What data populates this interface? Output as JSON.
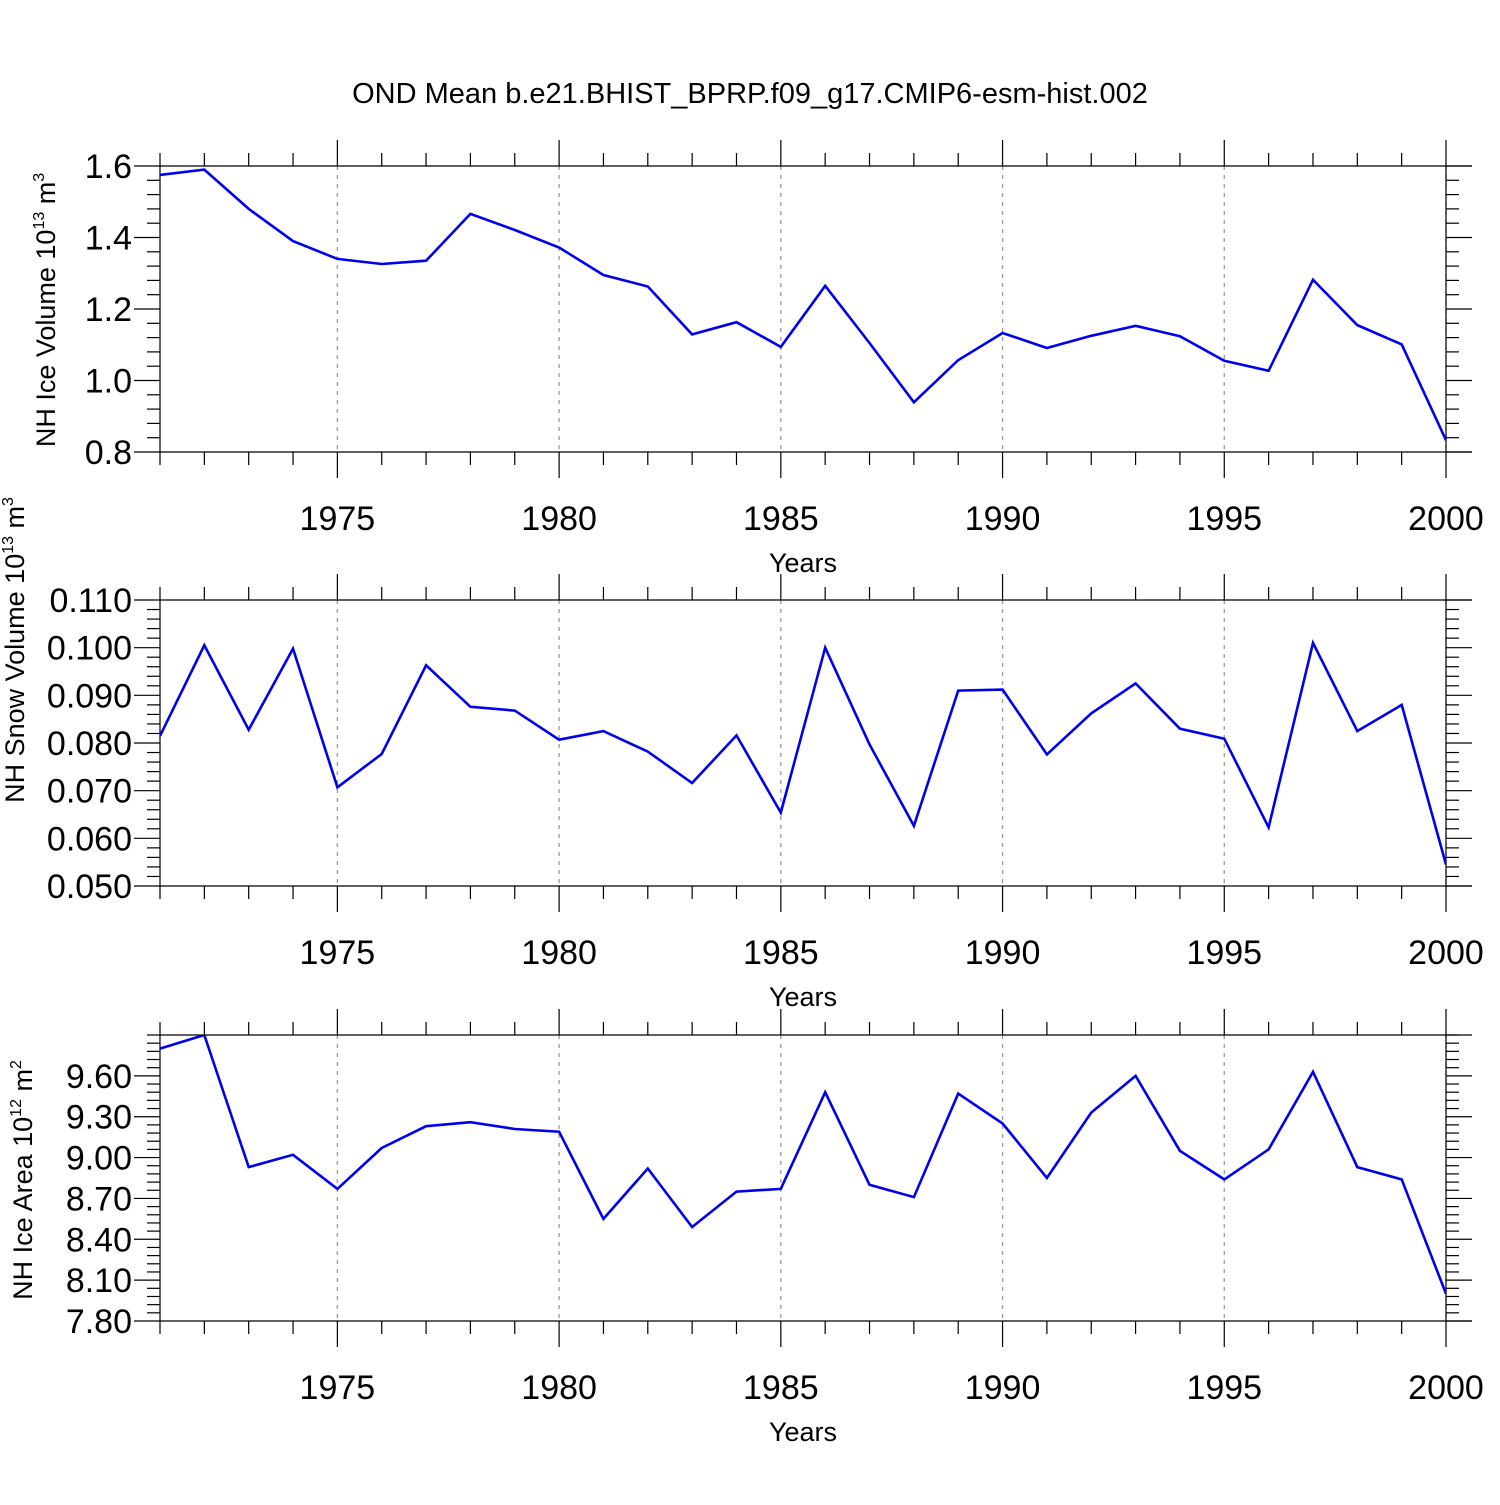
{
  "title": "OND Mean b.e21.BHIST_BPRP.f09_g17.CMIP6-esm-hist.002",
  "colors": {
    "series": "#0000ee",
    "grid": "#999999",
    "frame": "#000000"
  },
  "chart_data": [
    {
      "type": "line",
      "xlabel": "Years",
      "ylabel_main": "NH Ice Volume 10",
      "ylabel_exp": "13",
      "ylabel_unit": "m",
      "ylabel_unit_exp": "3",
      "xlim": [
        1971,
        2000
      ],
      "ylim": [
        0.8,
        1.6
      ],
      "xticks": [
        1975,
        1980,
        1985,
        1990,
        1995,
        2000
      ],
      "xtick_labels": [
        "1975",
        "1980",
        "1985",
        "1990",
        "1995",
        "2000"
      ],
      "yticks": [
        0.8,
        1.0,
        1.2,
        1.4,
        1.6
      ],
      "ytick_labels": [
        "0.8",
        "1.0",
        "1.2",
        "1.4",
        "1.6"
      ],
      "yminor_step": 0.04,
      "grid": "vertical-dashed-at-major-x-ticks",
      "x": [
        1971,
        1972,
        1973,
        1974,
        1975,
        1976,
        1977,
        1978,
        1979,
        1980,
        1981,
        1982,
        1983,
        1984,
        1985,
        1986,
        1987,
        1988,
        1989,
        1990,
        1991,
        1992,
        1993,
        1994,
        1995,
        1996,
        1997,
        1998,
        1999,
        2000
      ],
      "values": [
        1.575,
        1.59,
        1.48,
        1.39,
        1.34,
        1.326,
        1.335,
        1.466,
        1.421,
        1.372,
        1.295,
        1.263,
        1.129,
        1.163,
        1.094,
        1.265,
        1.105,
        0.939,
        1.057,
        1.133,
        1.091,
        1.125,
        1.153,
        1.124,
        1.055,
        1.027,
        1.282,
        1.155,
        1.101,
        0.833
      ]
    },
    {
      "type": "line",
      "xlabel": "Years",
      "ylabel_visible": "NH Snow Volume 10",
      "ylabel_exp": "13",
      "ylabel_unit": "m",
      "ylabel_unit_exp": "3",
      "xlim": [
        1971,
        2000
      ],
      "ylim": [
        0.05,
        0.11
      ],
      "xticks": [
        1975,
        1980,
        1985,
        1990,
        1995,
        2000
      ],
      "xtick_labels": [
        "1975",
        "1980",
        "1985",
        "1990",
        "1995",
        "2000"
      ],
      "yticks": [
        0.05,
        0.06,
        0.07,
        0.08,
        0.09,
        0.1,
        0.11
      ],
      "ytick_labels": [
        "0.050",
        "0.060",
        "0.070",
        "0.080",
        "0.090",
        "0.100",
        "0.110"
      ],
      "yminor_step": 0.002,
      "grid": "vertical-dashed-at-major-x-ticks",
      "x": [
        1971,
        1972,
        1973,
        1974,
        1975,
        1976,
        1977,
        1978,
        1979,
        1980,
        1981,
        1982,
        1983,
        1984,
        1985,
        1986,
        1987,
        1988,
        1989,
        1990,
        1991,
        1992,
        1993,
        1994,
        1995,
        1996,
        1997,
        1998,
        1999,
        2000
      ],
      "values": [
        0.0815,
        0.1005,
        0.0828,
        0.0998,
        0.0707,
        0.0777,
        0.0963,
        0.0876,
        0.0868,
        0.0807,
        0.0825,
        0.0782,
        0.0716,
        0.0816,
        0.0654,
        0.1,
        0.0797,
        0.0626,
        0.091,
        0.0912,
        0.0776,
        0.0862,
        0.0925,
        0.083,
        0.0809,
        0.0623,
        0.101,
        0.0825,
        0.088,
        0.0545
      ]
    },
    {
      "type": "line",
      "xlabel": "Years",
      "ylabel_main": "NH Ice Area 10",
      "ylabel_exp": "12",
      "ylabel_unit": "m",
      "ylabel_unit_exp": "2",
      "xlim": [
        1971,
        2000
      ],
      "ylim": [
        7.8,
        9.9
      ],
      "xticks": [
        1975,
        1980,
        1985,
        1990,
        1995,
        2000
      ],
      "xtick_labels": [
        "1975",
        "1980",
        "1985",
        "1990",
        "1995",
        "2000"
      ],
      "yticks": [
        7.8,
        8.1,
        8.4,
        8.7,
        9.0,
        9.3,
        9.6
      ],
      "ytick_labels": [
        "7.80",
        "8.10",
        "8.40",
        "8.70",
        "9.00",
        "9.30",
        "9.60"
      ],
      "yminor_step": 0.06,
      "grid": "vertical-dashed-at-major-x-ticks",
      "x": [
        1971,
        1972,
        1973,
        1974,
        1975,
        1976,
        1977,
        1978,
        1979,
        1980,
        1981,
        1982,
        1983,
        1984,
        1985,
        1986,
        1987,
        1988,
        1989,
        1990,
        1991,
        1992,
        1993,
        1994,
        1995,
        1996,
        1997,
        1998,
        1999,
        2000
      ],
      "values": [
        9.8,
        9.9,
        8.93,
        9.02,
        8.77,
        9.07,
        9.23,
        9.26,
        9.21,
        9.19,
        8.55,
        8.92,
        8.49,
        8.75,
        8.77,
        9.48,
        8.8,
        8.71,
        9.47,
        9.25,
        8.85,
        9.33,
        9.6,
        9.05,
        8.84,
        9.06,
        9.63,
        8.93,
        8.84,
        8.0
      ]
    }
  ]
}
